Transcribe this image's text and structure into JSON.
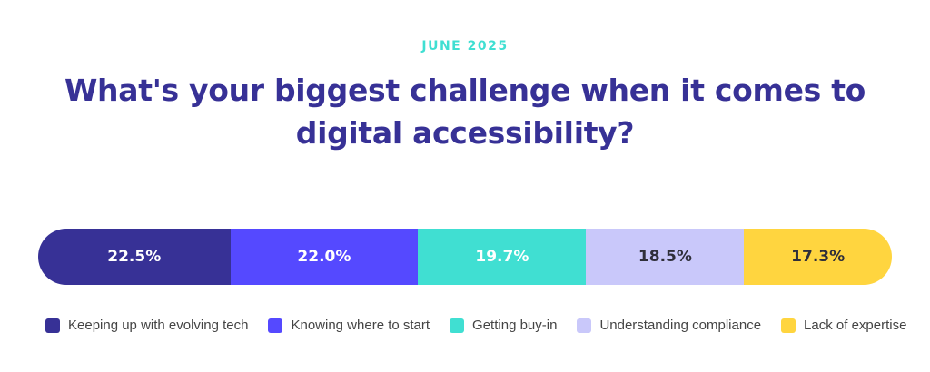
{
  "header": {
    "date": "JUNE 2025",
    "title": "What's your biggest challenge when it comes to digital accessibility?"
  },
  "chart_data": {
    "type": "bar",
    "stacked": true,
    "orientation": "horizontal",
    "title": "What's your biggest challenge when it comes to digital accessibility?",
    "unit": "%",
    "legend_position": "bottom",
    "grid": false,
    "series": [
      {
        "name": "Keeping up with evolving tech",
        "value": 22.5,
        "label": "22.5%",
        "color": "#373196",
        "text_color": "#ffffff"
      },
      {
        "name": "Knowing where to start",
        "value": 22.0,
        "label": "22.0%",
        "color": "#5549FF",
        "text_color": "#ffffff"
      },
      {
        "name": "Getting buy-in",
        "value": 19.7,
        "label": "19.7%",
        "color": "#40DFD2",
        "text_color": "#ffffff"
      },
      {
        "name": "Understanding compliance",
        "value": 18.5,
        "label": "18.5%",
        "color": "#C9C8FA",
        "text_color": "#2f2f3a"
      },
      {
        "name": "Lack of expertise",
        "value": 17.3,
        "label": "17.3%",
        "color": "#FFD53F",
        "text_color": "#2f2f3a"
      }
    ]
  }
}
